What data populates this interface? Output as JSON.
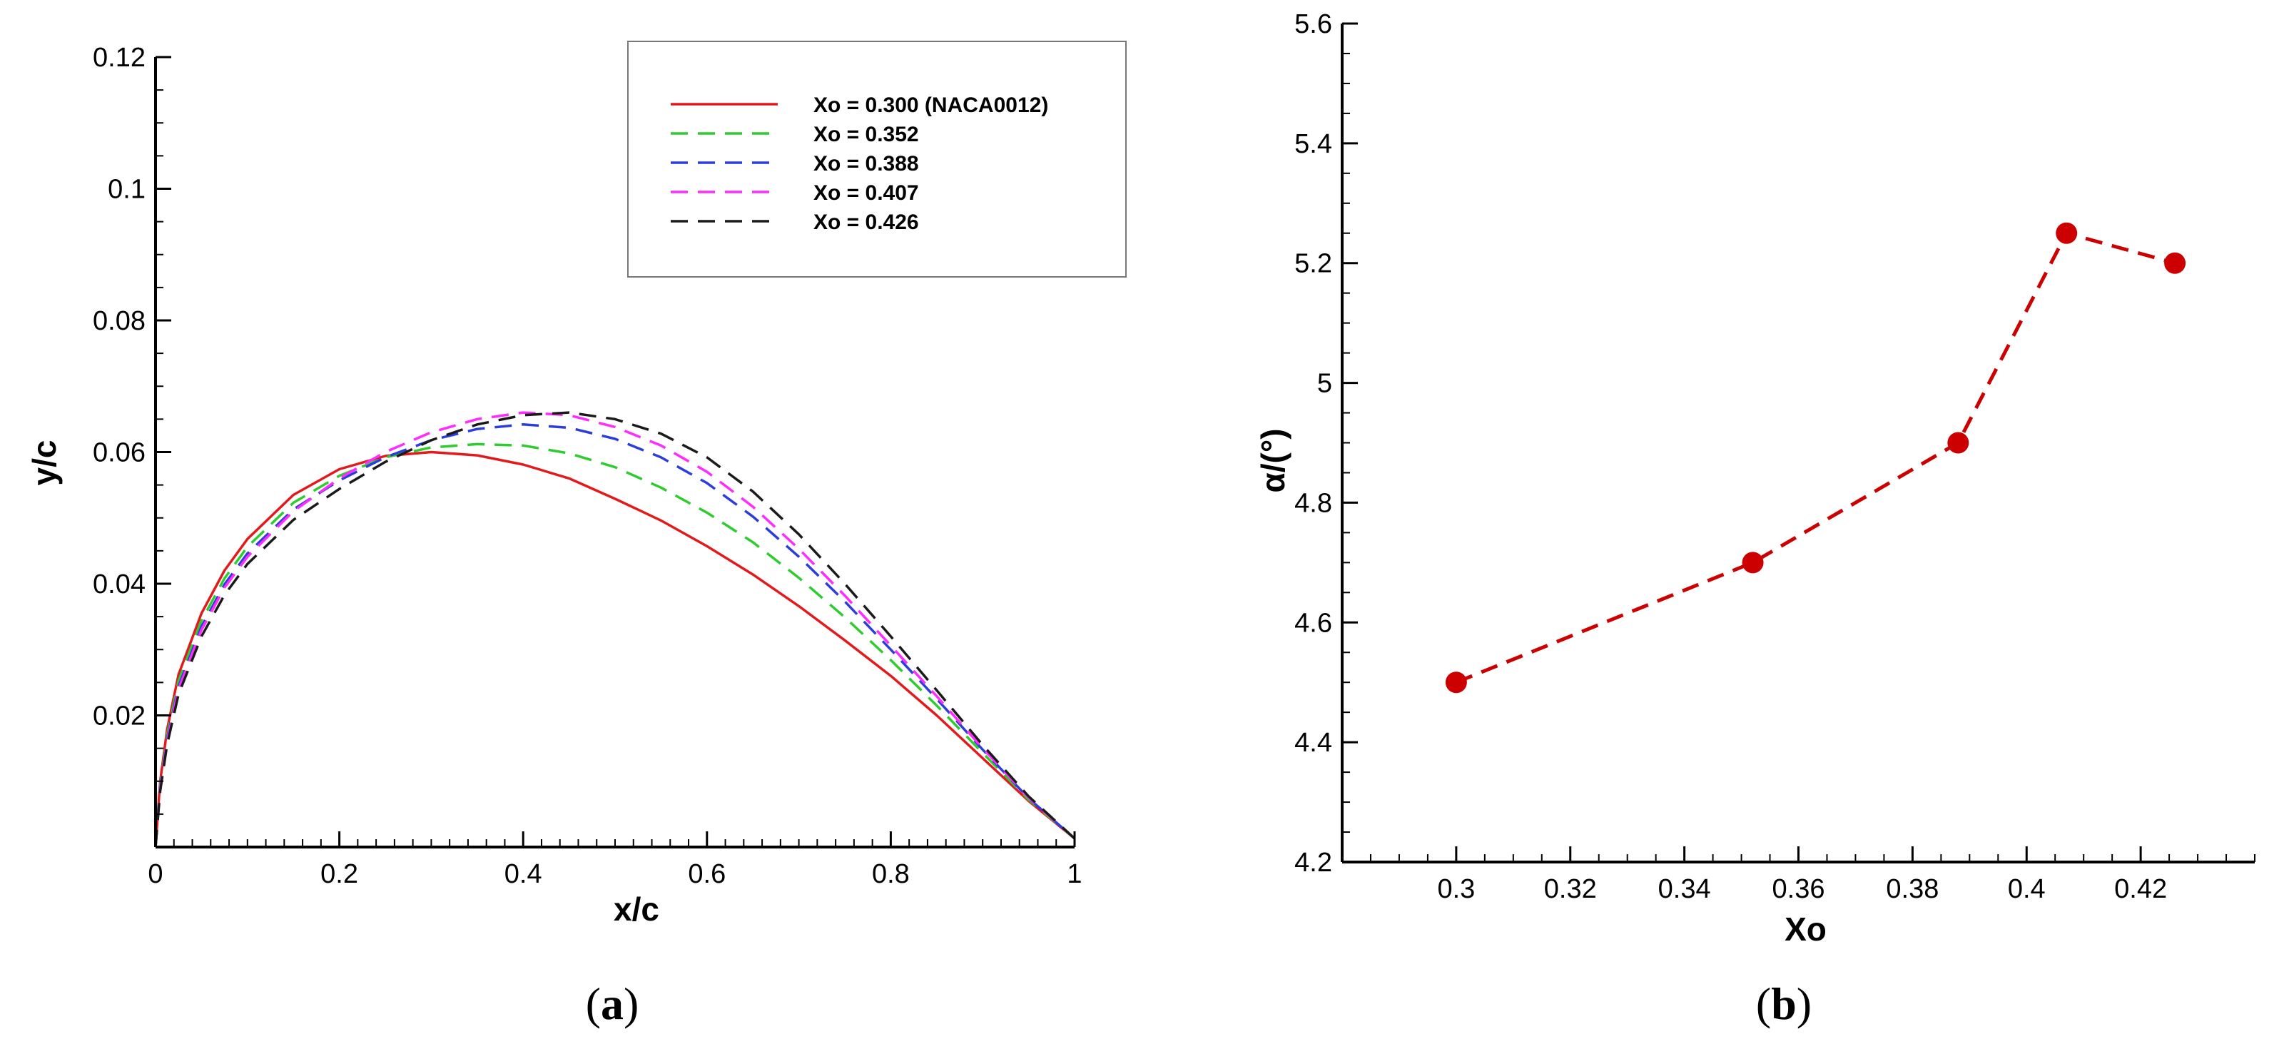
{
  "chart_data": [
    {
      "type": "line",
      "panel_label": "a",
      "xlabel": "x/c",
      "ylabel": "y/c",
      "xlim": [
        0,
        1
      ],
      "ylim": [
        0,
        0.12
      ],
      "x_ticks": [
        0,
        0.2,
        0.4,
        0.6,
        0.8,
        1
      ],
      "x_tick_labels": [
        "0",
        "0.2",
        "0.4",
        "0.6",
        "0.8",
        "1"
      ],
      "y_ticks": [
        0.02,
        0.04,
        0.06,
        0.08,
        0.1,
        0.12
      ],
      "y_tick_labels": [
        "0.02",
        "0.04",
        "0.06",
        "0.08",
        "0.1",
        "0.12"
      ],
      "legend_position": "top-right",
      "series": [
        {
          "name": "Xo = 0.300 (NACA0012)",
          "color": "#e31a1c",
          "dash": "solid",
          "x": [
            0,
            0.005,
            0.0125,
            0.025,
            0.05,
            0.075,
            0.1,
            0.15,
            0.2,
            0.25,
            0.3,
            0.35,
            0.4,
            0.45,
            0.5,
            0.55,
            0.6,
            0.65,
            0.7,
            0.75,
            0.8,
            0.85,
            0.9,
            0.95,
            1.0
          ],
          "y": [
            0,
            0.0099,
            0.0178,
            0.0262,
            0.0355,
            0.042,
            0.0468,
            0.0535,
            0.0574,
            0.0594,
            0.06,
            0.0595,
            0.0581,
            0.056,
            0.0529,
            0.0496,
            0.0457,
            0.0414,
            0.0366,
            0.0314,
            0.026,
            0.02,
            0.0135,
            0.007,
            0.0013
          ]
        },
        {
          "name": "Xo = 0.352",
          "color": "#2ecc2e",
          "dash": "dashed",
          "x": [
            0,
            0.005,
            0.0125,
            0.025,
            0.05,
            0.075,
            0.1,
            0.15,
            0.2,
            0.25,
            0.3,
            0.35,
            0.4,
            0.45,
            0.5,
            0.55,
            0.6,
            0.65,
            0.7,
            0.75,
            0.8,
            0.85,
            0.9,
            0.95,
            1.0
          ],
          "y": [
            0,
            0.0094,
            0.017,
            0.0252,
            0.0344,
            0.0408,
            0.0456,
            0.0523,
            0.0564,
            0.0592,
            0.0607,
            0.0612,
            0.061,
            0.0598,
            0.0577,
            0.0546,
            0.0508,
            0.0463,
            0.0409,
            0.0349,
            0.0284,
            0.0215,
            0.0143,
            0.0072,
            0.0013
          ]
        },
        {
          "name": "Xo = 0.388",
          "color": "#2b3ddb",
          "dash": "dashed",
          "x": [
            0,
            0.005,
            0.0125,
            0.025,
            0.05,
            0.075,
            0.1,
            0.15,
            0.2,
            0.25,
            0.3,
            0.35,
            0.4,
            0.45,
            0.5,
            0.55,
            0.6,
            0.65,
            0.7,
            0.75,
            0.8,
            0.85,
            0.9,
            0.95,
            1.0
          ],
          "y": [
            0,
            0.009,
            0.0164,
            0.0244,
            0.0335,
            0.0399,
            0.0446,
            0.0513,
            0.0557,
            0.0592,
            0.0618,
            0.0635,
            0.0642,
            0.0637,
            0.062,
            0.0592,
            0.0553,
            0.0502,
            0.0441,
            0.0373,
            0.03,
            0.0225,
            0.0148,
            0.0074,
            0.0013
          ]
        },
        {
          "name": "Xo = 0.407",
          "color": "#ff2bff",
          "dash": "dashed",
          "x": [
            0,
            0.005,
            0.0125,
            0.025,
            0.05,
            0.075,
            0.1,
            0.15,
            0.2,
            0.25,
            0.3,
            0.35,
            0.4,
            0.45,
            0.5,
            0.55,
            0.6,
            0.65,
            0.7,
            0.75,
            0.8,
            0.85,
            0.9,
            0.95,
            1.0
          ],
          "y": [
            0,
            0.0088,
            0.0161,
            0.024,
            0.033,
            0.0394,
            0.0441,
            0.051,
            0.056,
            0.06,
            0.063,
            0.065,
            0.066,
            0.0656,
            0.0638,
            0.061,
            0.057,
            0.0517,
            0.0453,
            0.0382,
            0.0306,
            0.0229,
            0.015,
            0.0075,
            0.0013
          ]
        },
        {
          "name": "Xo = 0.426",
          "color": "#1a1a1a",
          "dash": "dashed",
          "x": [
            0,
            0.005,
            0.0125,
            0.025,
            0.05,
            0.075,
            0.1,
            0.15,
            0.2,
            0.25,
            0.3,
            0.35,
            0.4,
            0.45,
            0.5,
            0.55,
            0.6,
            0.65,
            0.7,
            0.75,
            0.8,
            0.85,
            0.9,
            0.95,
            1.0
          ],
          "y": [
            0,
            0.0084,
            0.0155,
            0.0232,
            0.032,
            0.0383,
            0.043,
            0.0497,
            0.0544,
            0.0585,
            0.0618,
            0.0642,
            0.0656,
            0.066,
            0.065,
            0.0628,
            0.0592,
            0.054,
            0.0475,
            0.04,
            0.032,
            0.0238,
            0.0155,
            0.0077,
            0.0013
          ]
        }
      ]
    },
    {
      "type": "line",
      "panel_label": "b",
      "xlabel": "Xo",
      "ylabel": "α/(°)",
      "xlim": [
        0.28,
        0.44
      ],
      "ylim": [
        4.2,
        5.6
      ],
      "x_ticks": [
        0.3,
        0.32,
        0.34,
        0.36,
        0.38,
        0.4,
        0.42
      ],
      "x_tick_labels": [
        "0.3",
        "0.32",
        "0.34",
        "0.36",
        "0.38",
        "0.4",
        "0.42"
      ],
      "y_ticks": [
        4.2,
        4.4,
        4.6,
        4.8,
        5,
        5.2,
        5.4,
        5.6
      ],
      "y_tick_labels": [
        "4.2",
        "4.4",
        "4.6",
        "4.8",
        "5",
        "5.2",
        "5.4",
        "5.6"
      ],
      "series": [
        {
          "name": "alpha",
          "color": "#cc0000",
          "dash": "dashed",
          "marker": "circle",
          "x": [
            0.3,
            0.352,
            0.388,
            0.407,
            0.426
          ],
          "y": [
            4.5,
            4.7,
            4.9,
            5.25,
            5.2
          ]
        }
      ]
    }
  ]
}
